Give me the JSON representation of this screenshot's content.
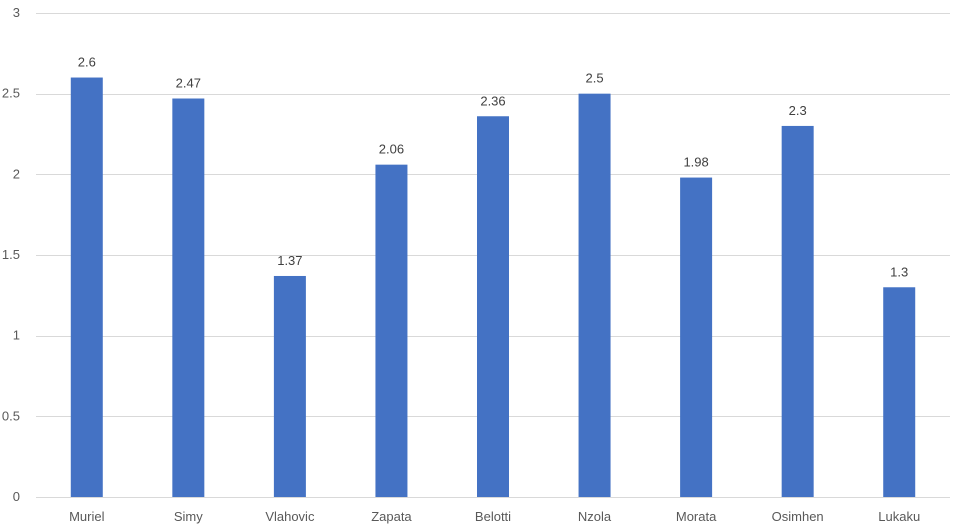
{
  "chart_data": {
    "type": "bar",
    "title": "",
    "xlabel": "",
    "ylabel": "",
    "categories": [
      "Muriel",
      "Simy",
      "Vlahovic",
      "Zapata",
      "Belotti",
      "Nzola",
      "Morata",
      "Osimhen",
      "Lukaku"
    ],
    "values": [
      2.6,
      2.47,
      1.37,
      2.06,
      2.36,
      2.5,
      1.98,
      2.3,
      1.3
    ],
    "data_labels": [
      "2.6",
      "2.47",
      "1.37",
      "2.06",
      "2.36",
      "2.5",
      "1.98",
      "2.3",
      "1.3"
    ],
    "ylim": [
      0,
      3
    ],
    "yticks": [
      0,
      0.5,
      1,
      1.5,
      2,
      2.5,
      3
    ],
    "ytick_labels": [
      "0",
      "0.5",
      "1",
      "1.5",
      "2",
      "2.5",
      "3"
    ],
    "grid": true,
    "legend": "none",
    "bar_color": "#4472C4",
    "grid_color": "#D9D9D9"
  }
}
